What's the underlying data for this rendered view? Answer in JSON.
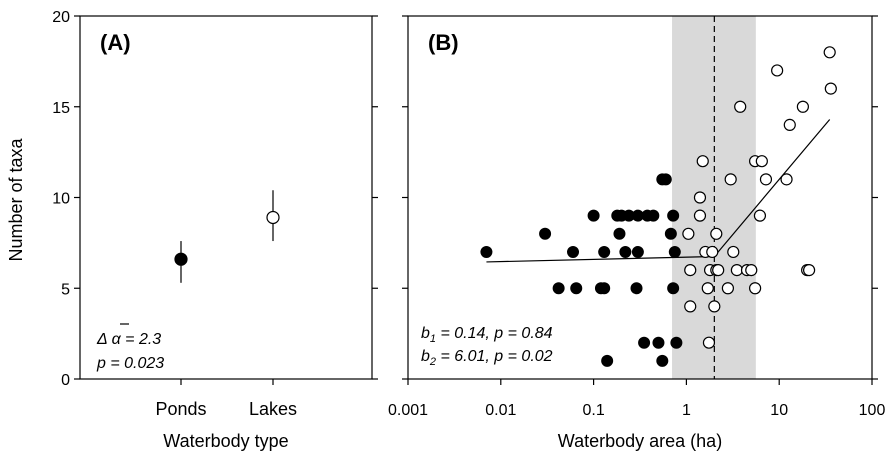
{
  "y_axis_label": "Number of taxa",
  "chart_data": [
    {
      "panel": "A",
      "type": "scatter",
      "panel_label": "(A)",
      "xlabel": "Waterbody type",
      "ylabel": "Number of taxa",
      "ylim": [
        0,
        20
      ],
      "yticks": [
        0,
        5,
        10,
        15,
        20
      ],
      "categories": [
        "Ponds",
        "Lakes"
      ],
      "points": [
        {
          "category": "Ponds",
          "mean": 6.6,
          "lower": 5.3,
          "upper": 7.6,
          "filled": true
        },
        {
          "category": "Lakes",
          "mean": 8.9,
          "lower": 7.6,
          "upper": 10.4,
          "filled": false
        }
      ],
      "annotations": {
        "line1_prefix": "Δ ",
        "line1_symbol": "α",
        "line1_value": " = 2.3",
        "line2": "p = 0.023"
      }
    },
    {
      "panel": "B",
      "type": "scatter",
      "panel_label": "(B)",
      "xlabel": "Waterbody area (ha)",
      "ylabel": "Number of taxa",
      "xscale": "log",
      "xlim": [
        0.001,
        100
      ],
      "ylim": [
        0,
        20
      ],
      "xticks": [
        0.001,
        0.01,
        0.1,
        1,
        10,
        100
      ],
      "xtick_labels": [
        "0.001",
        "0.01",
        "0.1",
        "1",
        "10",
        "100"
      ],
      "yticks": [
        0,
        5,
        10,
        15,
        20
      ],
      "shaded_band": [
        0.7,
        5.6
      ],
      "breakpoint": 2.0,
      "ponds": [
        [
          0.007,
          7
        ],
        [
          0.03,
          8
        ],
        [
          0.042,
          5
        ],
        [
          0.06,
          7
        ],
        [
          0.065,
          5
        ],
        [
          0.1,
          9
        ],
        [
          0.12,
          5
        ],
        [
          0.13,
          5
        ],
        [
          0.13,
          7
        ],
        [
          0.14,
          1
        ],
        [
          0.18,
          9
        ],
        [
          0.19,
          8
        ],
        [
          0.2,
          9
        ],
        [
          0.22,
          7
        ],
        [
          0.24,
          9
        ],
        [
          0.29,
          5
        ],
        [
          0.3,
          9
        ],
        [
          0.3,
          7
        ],
        [
          0.35,
          2
        ],
        [
          0.38,
          9
        ],
        [
          0.44,
          9
        ],
        [
          0.5,
          2
        ],
        [
          0.55,
          11
        ],
        [
          0.6,
          11
        ],
        [
          0.55,
          1
        ],
        [
          0.68,
          8
        ],
        [
          0.72,
          9
        ],
        [
          0.72,
          5
        ],
        [
          0.78,
          2
        ],
        [
          0.75,
          7
        ]
      ],
      "lakes": [
        [
          1.05,
          8
        ],
        [
          1.1,
          4
        ],
        [
          1.1,
          6
        ],
        [
          1.4,
          9
        ],
        [
          1.4,
          10
        ],
        [
          1.5,
          12
        ],
        [
          1.6,
          7
        ],
        [
          1.75,
          2
        ],
        [
          1.7,
          5
        ],
        [
          1.8,
          6
        ],
        [
          1.9,
          7
        ],
        [
          2.0,
          4
        ],
        [
          2.1,
          6
        ],
        [
          2.2,
          6
        ],
        [
          2.1,
          8
        ],
        [
          2.8,
          5
        ],
        [
          3.0,
          11
        ],
        [
          3.2,
          7
        ],
        [
          3.5,
          6
        ],
        [
          3.8,
          15
        ],
        [
          4.5,
          6
        ],
        [
          5.0,
          6
        ],
        [
          5.5,
          12
        ],
        [
          5.5,
          5
        ],
        [
          6.2,
          9
        ],
        [
          6.5,
          12
        ],
        [
          7.2,
          11
        ],
        [
          9.5,
          17
        ],
        [
          12,
          11
        ],
        [
          13,
          14
        ],
        [
          18,
          15
        ],
        [
          20,
          6
        ],
        [
          21,
          6
        ],
        [
          35,
          18
        ],
        [
          36,
          16
        ]
      ],
      "fit_segments": [
        {
          "x": [
            0.007,
            2.0
          ],
          "y": [
            6.45,
            6.75
          ]
        },
        {
          "x": [
            2.0,
            35
          ],
          "y": [
            6.75,
            14.3
          ]
        }
      ],
      "annotations": {
        "line1": {
          "b": "b",
          "sub": "1",
          "rest": " = 0.14, p = 0.84"
        },
        "line2": {
          "b": "b",
          "sub": "2",
          "rest": " = 6.01, p = 0.02"
        }
      }
    }
  ]
}
